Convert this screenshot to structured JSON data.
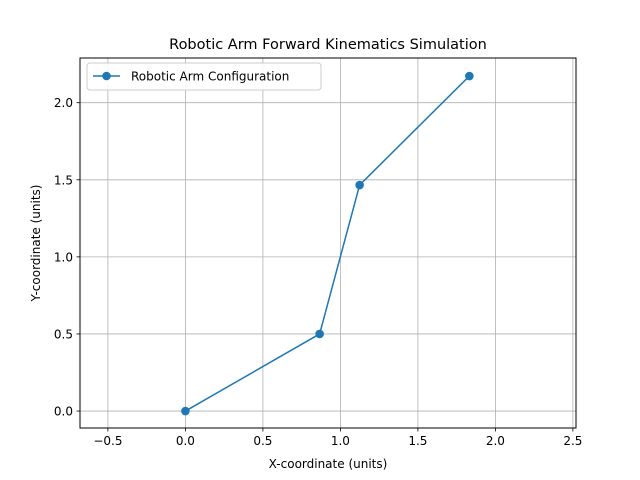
{
  "chart_data": {
    "type": "line",
    "title": "Robotic Arm Forward Kinematics Simulation",
    "xlabel": "X-coordinate (units)",
    "ylabel": "Y-coordinate (units)",
    "xlim": [
      -0.68,
      2.52
    ],
    "ylim": [
      -0.11,
      2.29
    ],
    "xticks": [
      -0.5,
      0.0,
      0.5,
      1.0,
      1.5,
      2.0,
      2.5
    ],
    "yticks": [
      0.0,
      0.5,
      1.0,
      1.5,
      2.0
    ],
    "xtick_labels": [
      "−0.5",
      "0.0",
      "0.5",
      "1.0",
      "1.5",
      "2.0",
      "2.5"
    ],
    "ytick_labels": [
      "0.0",
      "0.5",
      "1.0",
      "1.5",
      "2.0"
    ],
    "grid": true,
    "legend_position": "top-left",
    "series": [
      {
        "name": "Robotic Arm Configuration",
        "color": "#1f77b4",
        "marker": "circle",
        "x": [
          0.0,
          0.866,
          1.124,
          1.832
        ],
        "y": [
          0.0,
          0.5,
          1.466,
          2.173
        ]
      }
    ]
  }
}
